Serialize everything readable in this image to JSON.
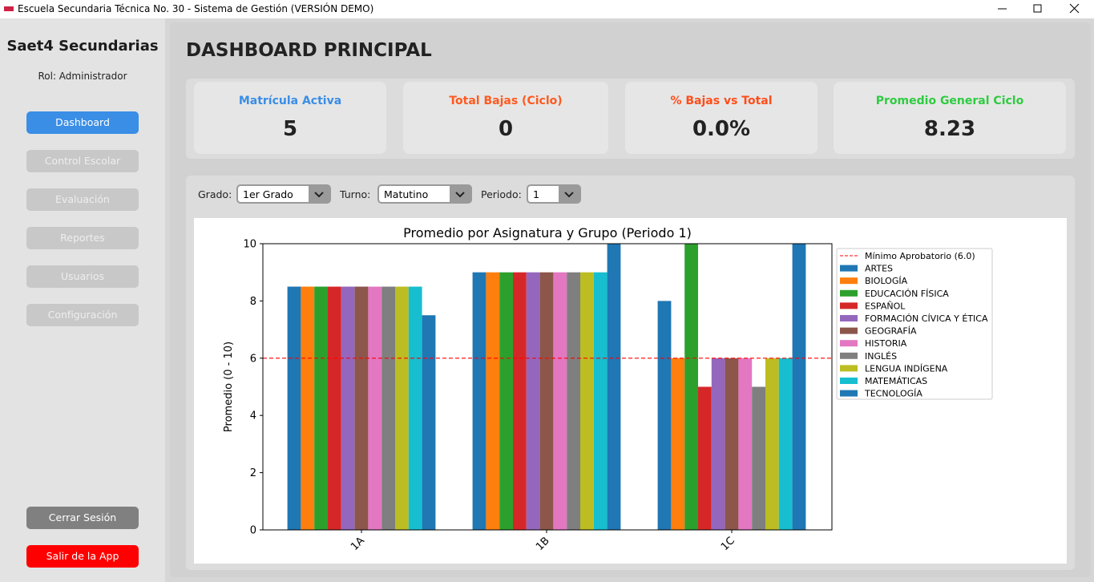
{
  "window": {
    "title": "Escuela Secundaria Técnica No. 30 - Sistema de Gestión (VERSIÓN DEMO)"
  },
  "sidebar": {
    "app_name": "Saet4 Secundarias",
    "role": "Rol: Administrador",
    "menu": [
      "Dashboard",
      "Control Escolar",
      "Evaluación",
      "Reportes",
      "Usuarios",
      "Configuración"
    ],
    "logout": "Cerrar Sesión",
    "exit": "Salir de la App"
  },
  "header": {
    "title": "DASHBOARD PRINCIPAL"
  },
  "cards": [
    {
      "label": "Matrícula Activa",
      "value": 5
    },
    {
      "label": "Total Bajas (Ciclo)",
      "value": 0
    },
    {
      "label": "% Bajas vs Total",
      "value": "0.0%"
    },
    {
      "label": "Promedio General Ciclo",
      "value": 8.23
    }
  ],
  "filters": [
    {
      "label": "Grado:",
      "value": "1er Grado"
    },
    {
      "label": "Turno:",
      "value": "Matutino"
    },
    {
      "label": "Periodo:",
      "value": "1"
    }
  ],
  "chart_data": {
    "type": "bar",
    "title": "Promedio por Asignatura y Grupo (Periodo 1)",
    "y_label": "Promedio (0 - 10)",
    "categories": [
      "1A",
      "1B",
      "1C"
    ],
    "ylim": [
      0,
      10
    ],
    "yticks": [
      0,
      2,
      4,
      6,
      8,
      10
    ],
    "reference_line": {
      "name": "Mínimo Aprobatorio (6.0)",
      "value": 6,
      "color": "#ff0000"
    },
    "legend": "upper right outside",
    "series": [
      {
        "name": "ARTES",
        "color": "#1f77b4",
        "values": [
          8.5,
          9,
          8
        ]
      },
      {
        "name": "BIOLOGÍA",
        "color": "#ff7f0e",
        "values": [
          8.5,
          9,
          6
        ]
      },
      {
        "name": "EDUCACIÓN FÍSICA",
        "color": "#2ca02c",
        "values": [
          8.5,
          9,
          10
        ]
      },
      {
        "name": "ESPAÑOL",
        "color": "#d62728",
        "values": [
          8.5,
          9,
          5
        ]
      },
      {
        "name": "FORMACIÓN CÍVICA Y ÉTICA",
        "color": "#9467bd",
        "values": [
          8.5,
          9,
          6
        ]
      },
      {
        "name": "GEOGRAFÍA",
        "color": "#8c564b",
        "values": [
          8.5,
          9,
          6
        ]
      },
      {
        "name": "HISTORIA",
        "color": "#e377c2",
        "values": [
          8.5,
          9,
          6
        ]
      },
      {
        "name": "INGLÉS",
        "color": "#7f7f7f",
        "values": [
          8.5,
          9,
          5
        ]
      },
      {
        "name": "LENGUA INDÍGENA",
        "color": "#bcbd22",
        "values": [
          8.5,
          9,
          6
        ]
      },
      {
        "name": "MATEMÁTICAS",
        "color": "#17becf",
        "values": [
          8.5,
          9,
          6
        ]
      },
      {
        "name": "TECNOLOGÍA",
        "color": "#1f77b4",
        "values": [
          7.5,
          10,
          10
        ]
      }
    ]
  }
}
